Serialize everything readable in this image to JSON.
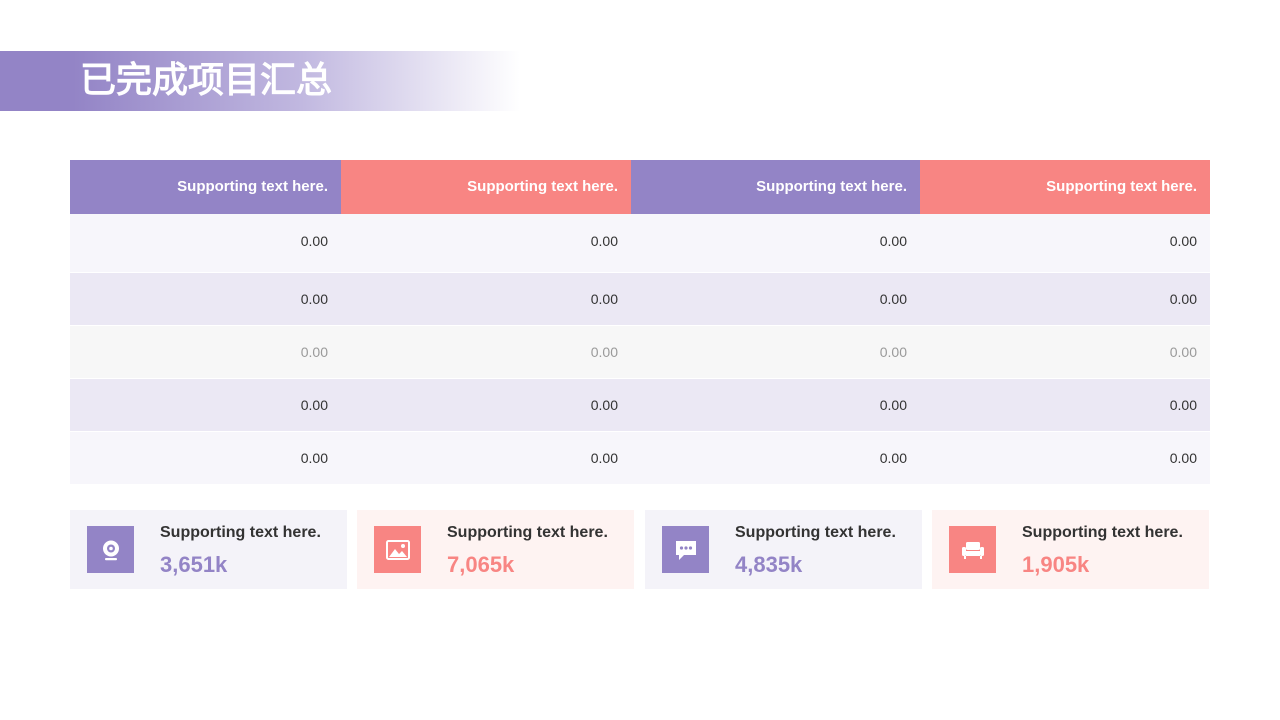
{
  "title": "已完成项目汇总",
  "colors": {
    "purple": "#9384c6",
    "pink": "#f88583"
  },
  "table": {
    "headers": [
      "Supporting text here.",
      "Supporting text here.",
      "Supporting text here.",
      "Supporting text here."
    ],
    "rows": [
      [
        "0.00",
        "0.00",
        "0.00",
        "0.00"
      ],
      [
        "0.00",
        "0.00",
        "0.00",
        "0.00"
      ],
      [
        "0.00",
        "0.00",
        "0.00",
        "0.00"
      ],
      [
        "0.00",
        "0.00",
        "0.00",
        "0.00"
      ],
      [
        "0.00",
        "0.00",
        "0.00",
        "0.00"
      ]
    ]
  },
  "cards": [
    {
      "label": "Supporting text here.",
      "value": "3,651k",
      "icon": "webcam-icon"
    },
    {
      "label": "Supporting text here.",
      "value": "7,065k",
      "icon": "image-icon"
    },
    {
      "label": "Supporting text here.",
      "value": "4,835k",
      "icon": "chat-bubble-icon"
    },
    {
      "label": "Supporting text here.",
      "value": "1,905k",
      "icon": "sofa-icon"
    }
  ]
}
